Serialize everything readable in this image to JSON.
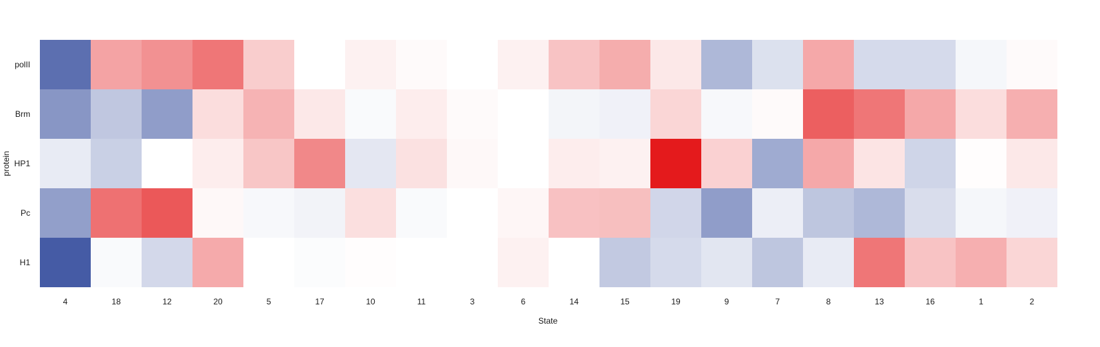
{
  "chart_data": {
    "type": "heatmap",
    "xlabel": "State",
    "ylabel": "protein",
    "x_categories": [
      "4",
      "18",
      "12",
      "20",
      "5",
      "17",
      "10",
      "11",
      "3",
      "6",
      "14",
      "15",
      "19",
      "9",
      "7",
      "8",
      "13",
      "16",
      "1",
      "2"
    ],
    "y_categories": [
      "polII",
      "Brm",
      "HP1",
      "Pc",
      "H1"
    ],
    "color_scale": {
      "low": "#3f56a2",
      "mid": "#ffffff",
      "high": "#e41a1c",
      "domain": [
        -1,
        1
      ]
    },
    "values": [
      [
        -0.85,
        0.4,
        0.48,
        0.6,
        0.22,
        0.0,
        0.06,
        0.02,
        0.0,
        0.06,
        0.26,
        0.36,
        0.1,
        -0.42,
        -0.18,
        0.38,
        -0.22,
        -0.22,
        -0.05,
        0.02
      ],
      [
        -0.62,
        -0.33,
        -0.58,
        0.15,
        0.33,
        0.1,
        -0.03,
        0.08,
        0.02,
        0.0,
        -0.06,
        -0.08,
        0.18,
        -0.04,
        0.02,
        0.7,
        0.6,
        0.38,
        0.15,
        0.35
      ],
      [
        -0.12,
        -0.28,
        0.0,
        0.08,
        0.25,
        0.52,
        -0.14,
        0.13,
        0.03,
        0.0,
        0.08,
        0.06,
        1.0,
        0.2,
        -0.5,
        0.38,
        0.12,
        -0.25,
        0.01,
        0.1
      ],
      [
        -0.57,
        0.62,
        0.73,
        0.03,
        -0.04,
        -0.07,
        0.14,
        -0.03,
        0.0,
        0.04,
        0.27,
        0.28,
        -0.24,
        -0.58,
        -0.1,
        -0.34,
        -0.42,
        -0.2,
        -0.05,
        -0.08
      ],
      [
        -0.97,
        -0.03,
        -0.23,
        0.37,
        0.0,
        -0.02,
        0.01,
        0.0,
        0.0,
        0.06,
        0.0,
        -0.32,
        -0.22,
        -0.15,
        -0.34,
        -0.12,
        0.6,
        0.26,
        0.35,
        0.18
      ]
    ]
  }
}
